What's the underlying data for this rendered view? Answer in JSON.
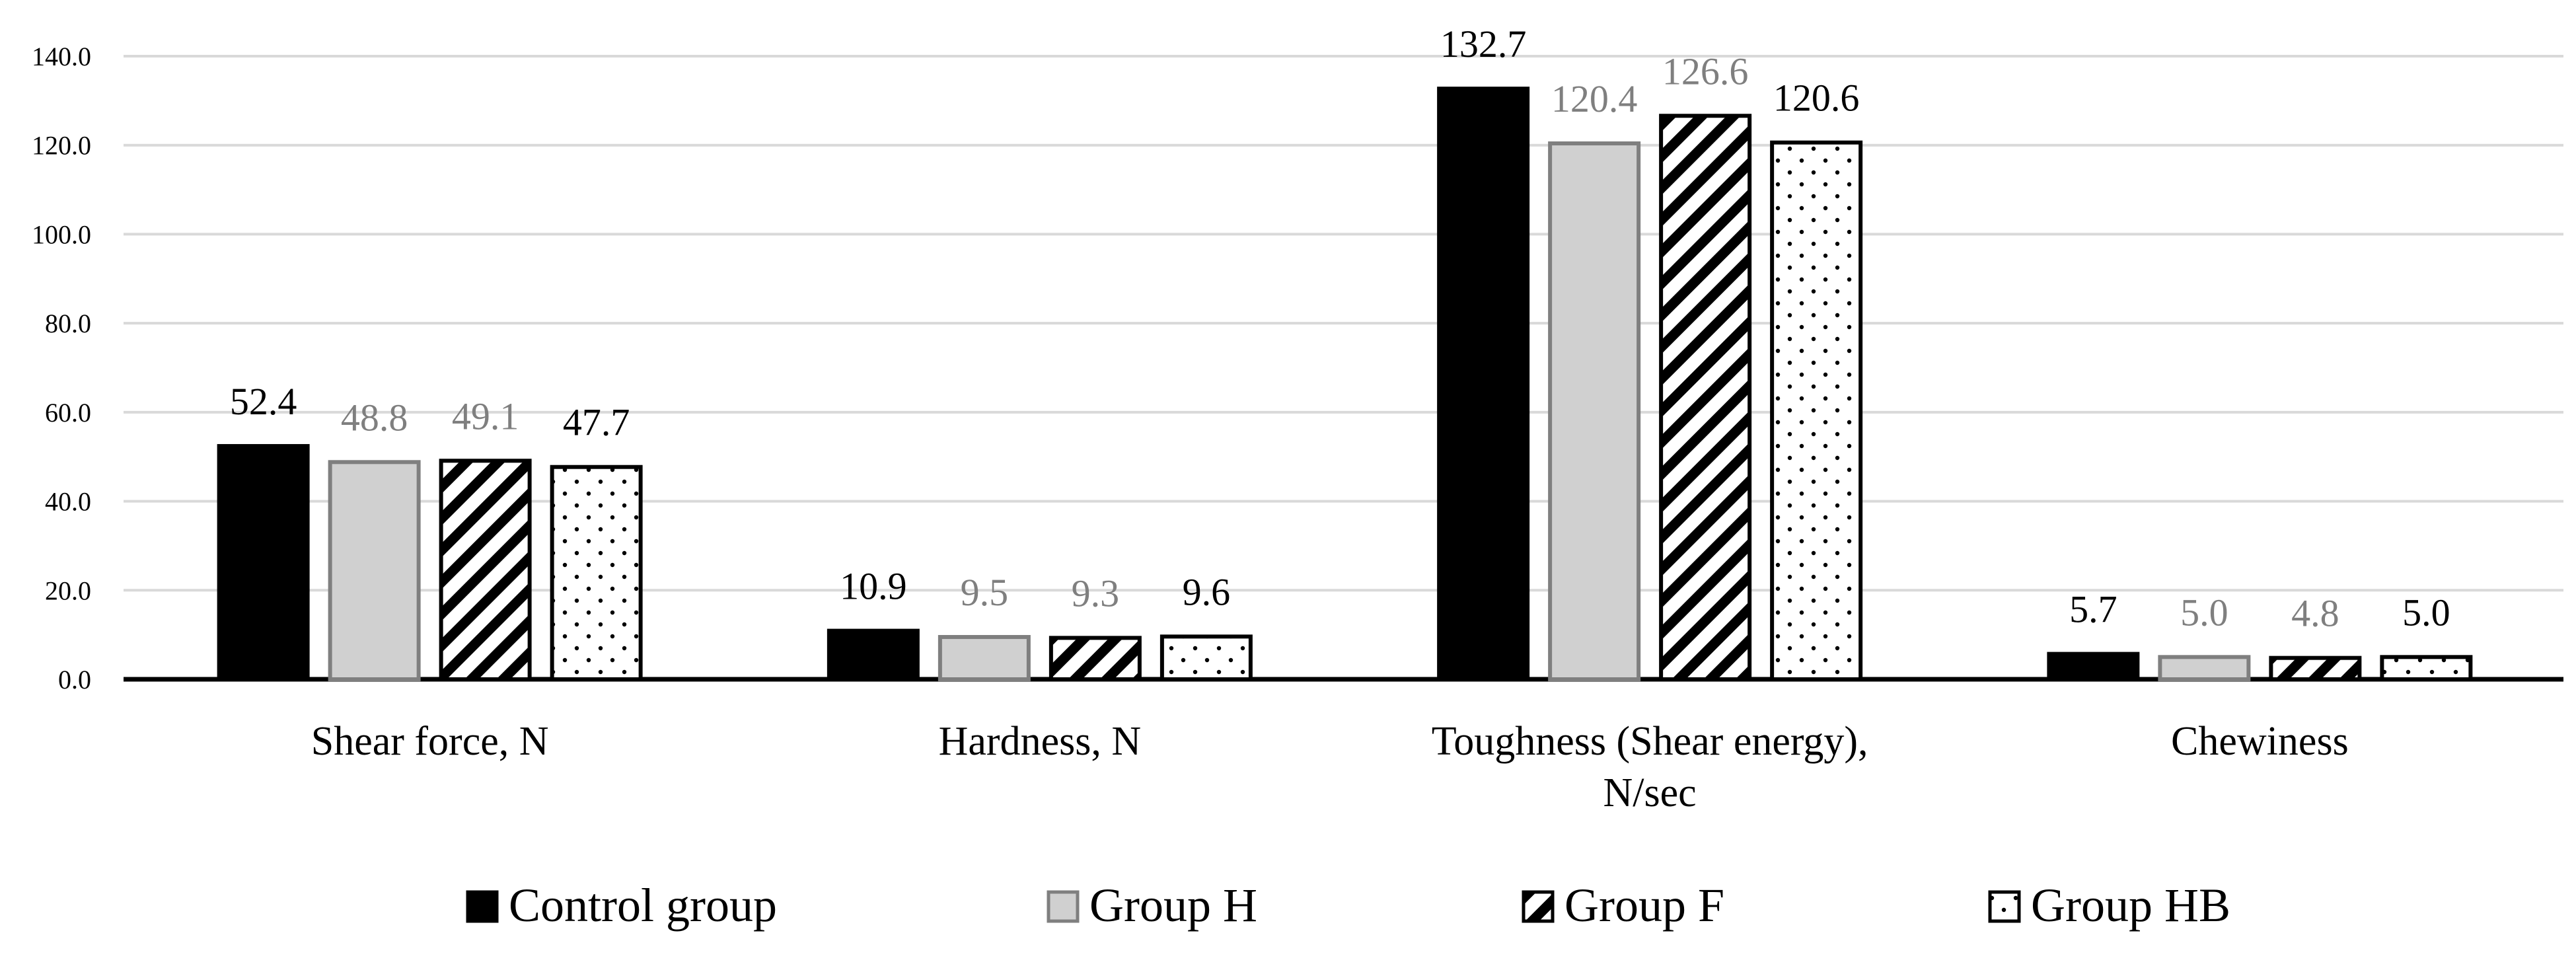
{
  "chart_data": {
    "type": "bar",
    "categories": [
      [
        "Shear force, N"
      ],
      [
        "Hardness, N"
      ],
      [
        "Toughness (Shear energy),",
        "N/sec"
      ],
      [
        "Chewiness"
      ]
    ],
    "series": [
      {
        "name": "Control group",
        "values": [
          52.4,
          10.9,
          132.7,
          5.7
        ],
        "fill": "#000000",
        "pattern": "solid",
        "label_color": "#000000"
      },
      {
        "name": "Group H",
        "values": [
          48.8,
          9.5,
          120.4,
          5.0
        ],
        "fill": "#d0d0d0",
        "pattern": "solid",
        "label_color": "#7f7f7f"
      },
      {
        "name": "Group F",
        "values": [
          49.1,
          9.3,
          126.6,
          4.8
        ],
        "fill": "#ffffff",
        "pattern": "diagonal-hatch",
        "label_color": "#7f7f7f"
      },
      {
        "name": "Group HB",
        "values": [
          47.7,
          9.6,
          120.6,
          5.0
        ],
        "fill": "#ffffff",
        "pattern": "dots",
        "label_color": "#000000"
      }
    ],
    "data_labels": [
      [
        "52.4",
        "10.9",
        "132.7",
        "5.7"
      ],
      [
        "48.8",
        "9.5",
        "120.4",
        "5.0"
      ],
      [
        "49.1",
        "9.3",
        "126.6",
        "4.8"
      ],
      [
        "47.7",
        "9.6",
        "120.6",
        "5.0"
      ]
    ],
    "y_ticks": [
      "0.0",
      "20.0",
      "40.0",
      "60.0",
      "80.0",
      "100.0",
      "120.0",
      "140.0"
    ],
    "ylim": [
      0,
      140
    ],
    "grid": true,
    "legend_position": "bottom",
    "title": "",
    "xlabel": "",
    "ylabel": ""
  }
}
